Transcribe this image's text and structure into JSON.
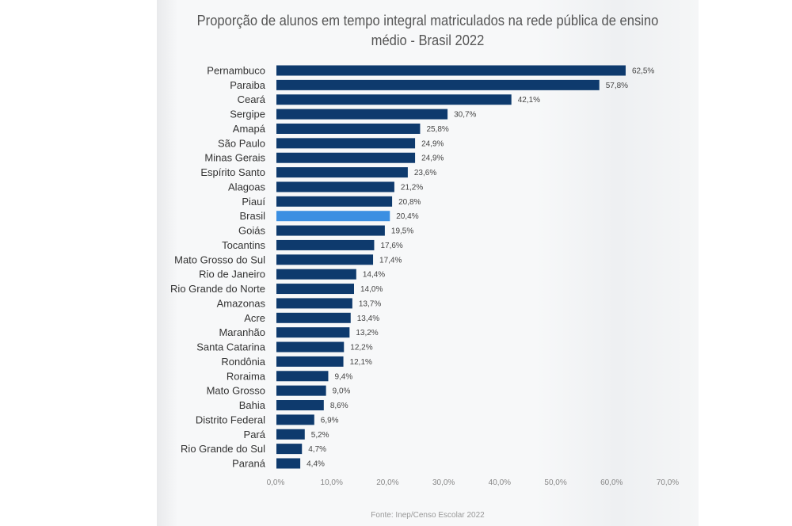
{
  "chart_data": {
    "type": "bar",
    "orientation": "horizontal",
    "title": "Proporção de alunos em tempo integral matriculados na rede pública de ensino médio - Brasil 2022",
    "source": "Fonte: Inep/Censo Escolar 2022",
    "categories": [
      "Pernambuco",
      "Paraiba",
      "Ceará",
      "Sergipe",
      "Amapá",
      "São Paulo",
      "Minas Gerais",
      "Espírito Santo",
      "Alagoas",
      "Piauí",
      "Brasil",
      "Goiás",
      "Tocantins",
      "Mato Grosso do Sul",
      "Rio de Janeiro",
      "Rio Grande do Norte",
      "Amazonas",
      "Acre",
      "Maranhão",
      "Santa Catarina",
      "Rondônia",
      "Roraima",
      "Mato Grosso",
      "Bahia",
      "Distrito Federal",
      "Pará",
      "Rio Grande do Sul",
      "Paraná"
    ],
    "values": [
      62.5,
      57.8,
      42.1,
      30.7,
      25.8,
      24.9,
      24.9,
      23.6,
      21.2,
      20.8,
      20.4,
      19.5,
      17.6,
      17.4,
      14.4,
      14.0,
      13.7,
      13.4,
      13.2,
      12.2,
      12.1,
      9.4,
      9.0,
      8.6,
      6.9,
      5.2,
      4.7,
      4.4
    ],
    "data_labels": [
      "62,5%",
      "57,8%",
      "42,1%",
      "30,7%",
      "25,8%",
      "24,9%",
      "24,9%",
      "23,6%",
      "21,2%",
      "20,8%",
      "20,4%",
      "19,5%",
      "17,6%",
      "17,4%",
      "14,4%",
      "14,0%",
      "13,7%",
      "13,4%",
      "13,2%",
      "12,2%",
      "12,1%",
      "9,4%",
      "9,0%",
      "8,6%",
      "6,9%",
      "5,2%",
      "4,7%",
      "4,4%"
    ],
    "xlim": [
      0,
      70
    ],
    "x_ticks": [
      "0,0%",
      "10,0%",
      "20,0%",
      "30,0%",
      "40,0%",
      "50,0%",
      "60,0%",
      "70,0%"
    ],
    "grid": false,
    "legend": "none",
    "colors": {
      "bar": "#0e3a6d",
      "highlight": "#3b8fe2"
    },
    "highlight_category": "Brasil"
  }
}
